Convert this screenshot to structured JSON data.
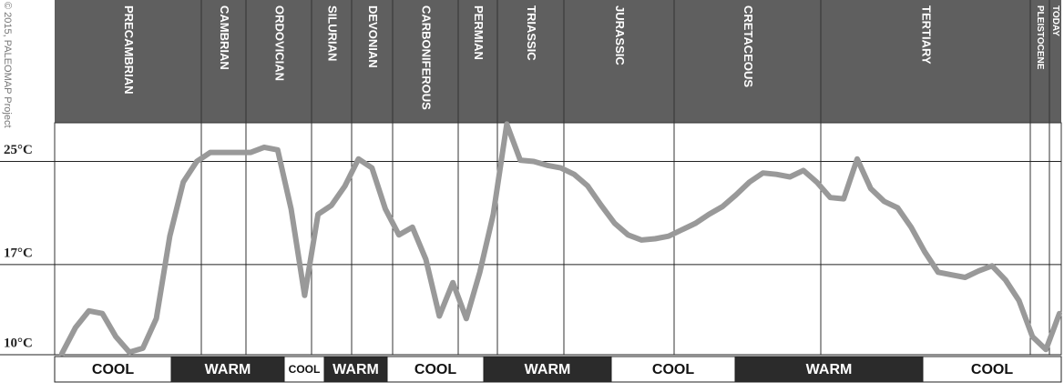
{
  "chart_data": {
    "type": "line",
    "credit": "© 2015, PALEOMAP Project",
    "periods": [
      "PRECAMBRIAN",
      "CAMBRIAN",
      "ORDOVICIAN",
      "SILURIAN",
      "DEVONIAN",
      "CARBONIFEROUS",
      "PERMIAN",
      "TRIASSIC",
      "JURASSIC",
      "CRETACEOUS",
      "TERTIARY",
      "PLEISTOCENE",
      "TODAY"
    ],
    "climate_bands": [
      "COOL",
      "WARM",
      "COOL",
      "WARM",
      "COOL",
      "WARM",
      "COOL",
      "WARM",
      "COOL"
    ],
    "ylim": [
      10,
      28
    ],
    "yticks": [
      {
        "value": 10,
        "label": "10°C"
      },
      {
        "value": 17,
        "label": "17°C"
      },
      {
        "value": 25,
        "label": "25°C"
      }
    ],
    "grid": true,
    "series": [
      {
        "color": "#999999",
        "values": [
          10.1,
          12.1,
          13.4,
          13.2,
          11.4,
          10.2,
          10.5,
          12.8,
          19.2,
          23.4,
          25,
          25.7,
          25.7,
          25.7,
          25.7,
          26.1,
          25.9,
          21.3,
          14.6,
          20.9,
          21.6,
          23.1,
          25.2,
          24.5,
          21.3,
          19.3,
          19.9,
          17.4,
          13,
          15.6,
          12.8,
          16.4,
          20.9,
          27.9,
          25.1,
          25,
          24.7,
          24.5,
          24,
          23.1,
          21.6,
          20.2,
          19.3,
          18.9,
          19,
          19.2,
          19.7,
          20.2,
          20.9,
          21.5,
          22.4,
          23.4,
          24.1,
          24,
          23.8,
          24.3,
          23.4,
          22.2,
          22.1,
          25.2,
          22.9,
          21.9,
          21.4,
          19.9,
          18,
          16.4,
          16.2,
          16,
          16.5,
          16.9,
          15.8,
          14.2,
          11.4,
          10.4,
          13.2
        ]
      }
    ]
  }
}
